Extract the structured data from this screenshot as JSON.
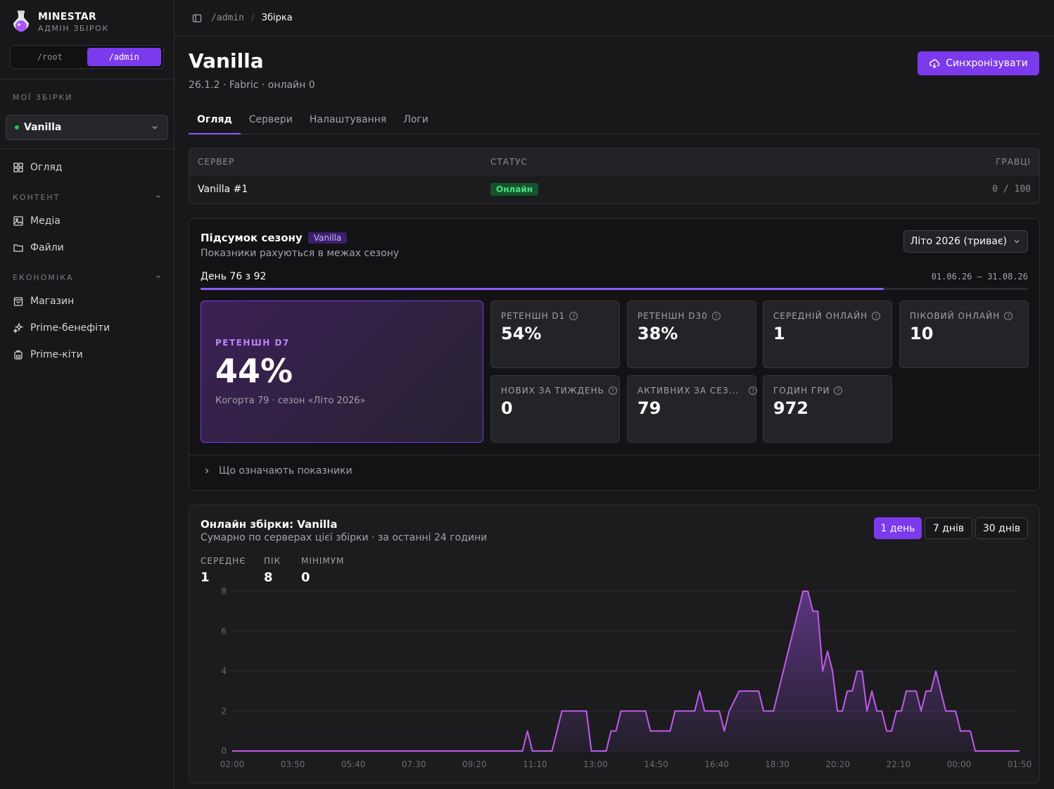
{
  "brand": {
    "name": "MINESTAR",
    "sub": "АДМІН ЗБІРОК"
  },
  "switch": {
    "root": "/root",
    "admin": "/admin"
  },
  "sidebar": {
    "my_label": "МОЇ ЗБІРКИ",
    "selected": "Vanilla",
    "overview": "Огляд",
    "content_label": "КОНТЕНТ",
    "media": "Медіа",
    "files": "Файли",
    "economy_label": "ЕКОНОМІКА",
    "shop": "Магазин",
    "prime_benefits": "Prime-бенефіти",
    "prime_kits": "Prime-кіти"
  },
  "breadcrumb": {
    "root": "/admin",
    "sep": "/",
    "current": "Збірка"
  },
  "page": {
    "title": "Vanilla",
    "subtitle": "26.1.2 · Fabric · онлайн 0",
    "sync": "Синхронізувати"
  },
  "tabs": [
    "Огляд",
    "Сервери",
    "Налаштування",
    "Логи"
  ],
  "servers": {
    "headers": {
      "server": "СЕРВЕР",
      "status": "СТАТУС",
      "players": "ГРАВЦІ"
    },
    "rows": [
      {
        "name": "Vanilla #1",
        "status": "Онлайн",
        "players": "0 / 100"
      }
    ]
  },
  "season": {
    "title": "Підсумок сезону",
    "badge": "Vanilla",
    "sub": "Показники рахуються в межах сезону",
    "select": "Літо 2026 (триває)",
    "day": "День 76 з 92",
    "progress": 0.826,
    "dates": "01.06.26 — 31.08.26",
    "hero": {
      "label": "РЕТЕНШН D7",
      "value": "44%",
      "sub": "Когорта 79 · сезон «Літо 2026»"
    },
    "kpis": [
      {
        "label": "РЕТЕНШН D1",
        "value": "54%"
      },
      {
        "label": "РЕТЕНШН D30",
        "value": "38%"
      },
      {
        "label": "СЕРЕДНІЙ ОНЛАЙН",
        "value": "1"
      },
      {
        "label": "ПІКОВИЙ ОНЛАЙН",
        "value": "10"
      },
      {
        "label": "НОВИХ ЗА ТИЖДЕНЬ",
        "value": "0"
      },
      {
        "label": "АКТИВНИХ ЗА СЕЗ...",
        "value": "79"
      },
      {
        "label": "ГОДИН ГРИ",
        "value": "972"
      }
    ],
    "help_icon": "?",
    "footer": "Що означають показники"
  },
  "online": {
    "title": "Онлайн збірки: Vanilla",
    "sub": "Сумарно по серверах цієї збірки · за останні 24 години",
    "ranges": [
      "1 день",
      "7 днів",
      "30 днів"
    ],
    "stats": [
      {
        "label": "СЕРЕДНЄ",
        "value": "1"
      },
      {
        "label": "ПІК",
        "value": "8"
      },
      {
        "label": "МІНІМУМ",
        "value": "0"
      }
    ]
  },
  "colors": {
    "accent": "#7c3aed",
    "line": "#c05be8",
    "online": "#22c55e"
  },
  "chart_data": {
    "type": "area",
    "x_ticks": [
      "02:00",
      "03:50",
      "05:40",
      "07:30",
      "09:20",
      "11:10",
      "13:00",
      "14:50",
      "16:40",
      "18:30",
      "20:20",
      "22:10",
      "00:00",
      "01:50"
    ],
    "y_ticks": [
      0,
      2,
      4,
      6,
      8
    ],
    "ylim": [
      0,
      8
    ],
    "points": [
      [
        0,
        0
      ],
      [
        295,
        0
      ],
      [
        300,
        1
      ],
      [
        305,
        0
      ],
      [
        325,
        0
      ],
      [
        335,
        2
      ],
      [
        360,
        2
      ],
      [
        365,
        0
      ],
      [
        380,
        0
      ],
      [
        385,
        1
      ],
      [
        390,
        1
      ],
      [
        395,
        2
      ],
      [
        420,
        2
      ],
      [
        425,
        1
      ],
      [
        445,
        1
      ],
      [
        450,
        2
      ],
      [
        470,
        2
      ],
      [
        475,
        3
      ],
      [
        480,
        2
      ],
      [
        495,
        2
      ],
      [
        500,
        1
      ],
      [
        505,
        2
      ],
      [
        515,
        3
      ],
      [
        535,
        3
      ],
      [
        540,
        2
      ],
      [
        550,
        2
      ],
      [
        560,
        4
      ],
      [
        570,
        6
      ],
      [
        580,
        8
      ],
      [
        585,
        8
      ],
      [
        590,
        7
      ],
      [
        595,
        7
      ],
      [
        600,
        4
      ],
      [
        605,
        5
      ],
      [
        610,
        4
      ],
      [
        615,
        2
      ],
      [
        620,
        2
      ],
      [
        625,
        3
      ],
      [
        630,
        3
      ],
      [
        635,
        4
      ],
      [
        640,
        4
      ],
      [
        645,
        2
      ],
      [
        650,
        3
      ],
      [
        655,
        2
      ],
      [
        660,
        2
      ],
      [
        665,
        1
      ],
      [
        670,
        1
      ],
      [
        675,
        2
      ],
      [
        680,
        2
      ],
      [
        685,
        3
      ],
      [
        695,
        3
      ],
      [
        700,
        2
      ],
      [
        705,
        3
      ],
      [
        710,
        3
      ],
      [
        715,
        4
      ],
      [
        720,
        3
      ],
      [
        725,
        2
      ],
      [
        735,
        2
      ],
      [
        740,
        1
      ],
      [
        750,
        1
      ],
      [
        755,
        0
      ],
      [
        800,
        0
      ]
    ]
  }
}
